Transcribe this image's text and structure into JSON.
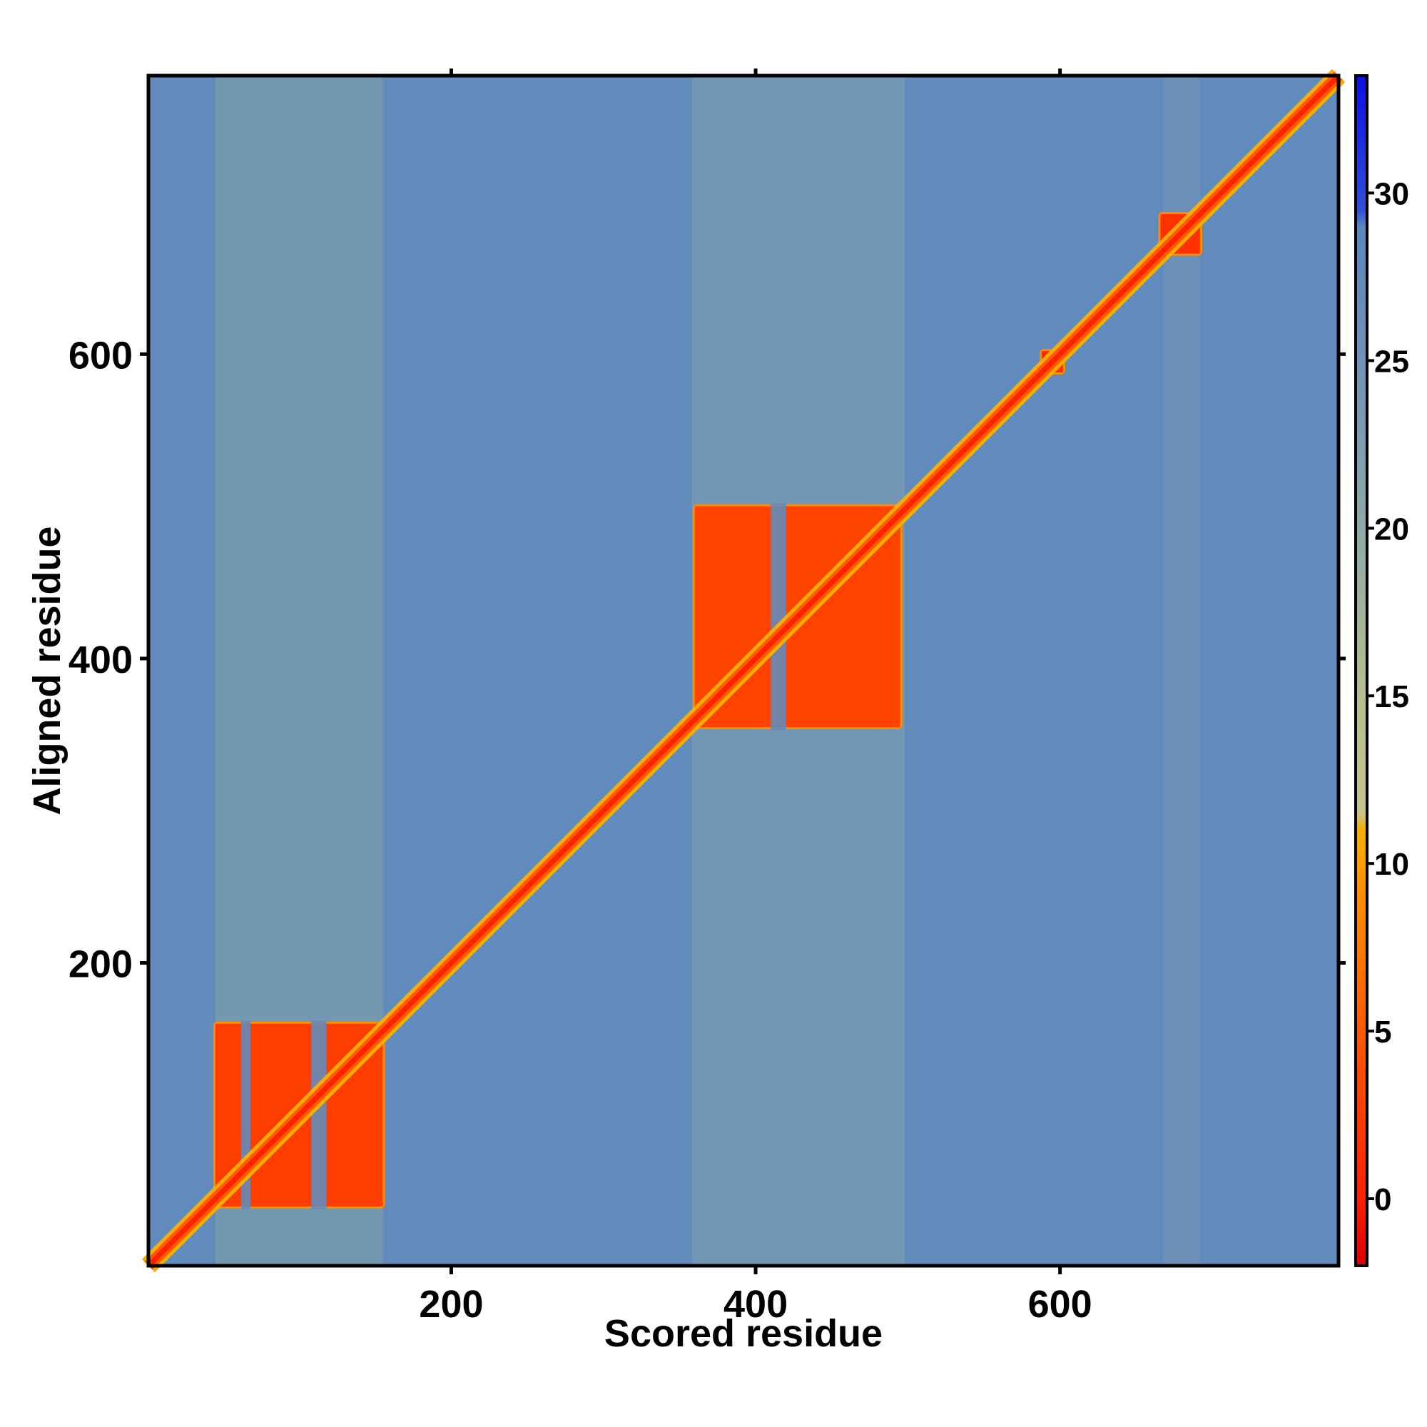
{
  "chart_data": {
    "type": "heatmap",
    "title": "",
    "xlabel": "Scored residue",
    "ylabel": "Aligned residue",
    "xlim": [
      1,
      783
    ],
    "ylim": [
      1,
      783
    ],
    "x_ticks": [
      200,
      400,
      600
    ],
    "y_ticks": [
      200,
      400,
      600
    ],
    "colorbar": {
      "range": [
        -2,
        33.5
      ],
      "ticks": [
        0,
        5,
        10,
        15,
        20,
        25,
        30
      ],
      "colors": [
        {
          "v": -2,
          "color": "#dd0000"
        },
        {
          "v": 0,
          "color": "#ff2000"
        },
        {
          "v": 5,
          "color": "#ff5a00"
        },
        {
          "v": 9,
          "color": "#ff8c00"
        },
        {
          "v": 11,
          "color": "#f5b000"
        },
        {
          "v": 11.5,
          "color": "#c8c488"
        },
        {
          "v": 15,
          "color": "#b4bf8c"
        },
        {
          "v": 20,
          "color": "#8ea9a8"
        },
        {
          "v": 25,
          "color": "#6f92b8"
        },
        {
          "v": 29,
          "color": "#5a87bd"
        },
        {
          "v": 29.5,
          "color": "#2f4fd8"
        },
        {
          "v": 33.5,
          "color": "#0a10e8"
        }
      ]
    },
    "background_value": 27.5,
    "diagonal_value": 0,
    "domains": [
      {
        "x": [
          45,
          155
        ],
        "y": [
          40,
          160
        ],
        "value": 2.5,
        "x_gaps": [
          [
            62,
            68
          ],
          [
            108,
            118
          ]
        ]
      },
      {
        "x": [
          360,
          495
        ],
        "y": [
          355,
          500
        ],
        "value": 3,
        "x_gaps": [
          [
            410,
            420
          ]
        ]
      },
      {
        "x": [
          588,
          602
        ],
        "y": [
          588,
          602
        ],
        "value": 1.5,
        "x_gaps": []
      },
      {
        "x": [
          666,
          692
        ],
        "y": [
          666,
          692
        ],
        "value": 1.5,
        "x_gaps": []
      }
    ],
    "stripes": [
      {
        "x": [
          45,
          155
        ],
        "value": 20
      },
      {
        "x": [
          358,
          498
        ],
        "value": 21
      },
      {
        "x": [
          668,
          692
        ],
        "value": 24
      }
    ]
  }
}
